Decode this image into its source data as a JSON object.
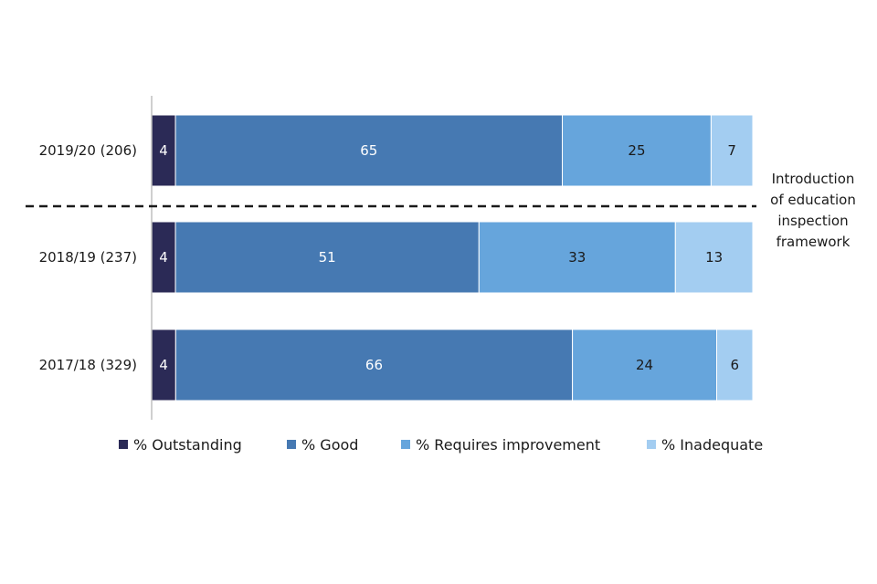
{
  "chart_data": {
    "type": "bar",
    "orientation": "horizontal",
    "stacked": true,
    "categories": [
      "2019/20 (206)",
      "2018/19 (237)",
      "2017/18 (329)"
    ],
    "series": [
      {
        "name": "% Outstanding",
        "values": [
          4,
          4,
          4
        ],
        "color": "#2b2a56"
      },
      {
        "name": "% Good",
        "values": [
          65,
          51,
          66
        ],
        "color": "#4679b2"
      },
      {
        "name": "% Requires improvement",
        "values": [
          25,
          33,
          24
        ],
        "color": "#66a5dc"
      },
      {
        "name": "% Inadequate",
        "values": [
          7,
          13,
          6
        ],
        "color": "#a3cdf1"
      }
    ],
    "label_colors": [
      "#ffffff",
      "#ffffff",
      "#1a1a1a",
      "#1a1a1a"
    ],
    "annotation": {
      "lines": [
        "Introduction",
        "of education",
        "inspection",
        "framework"
      ],
      "style": "dashed line between 2019/20 and 2018/19"
    },
    "legend_position": "bottom",
    "grid": false
  }
}
